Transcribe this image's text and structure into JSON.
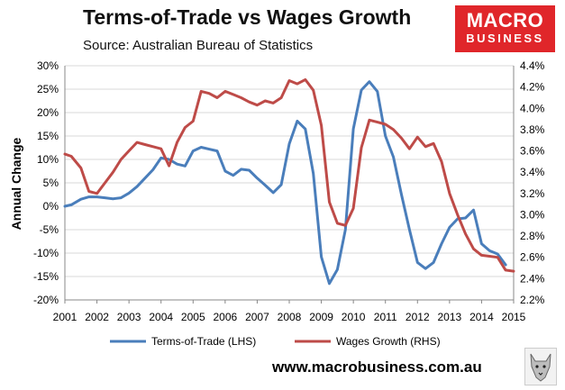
{
  "header": {
    "title": "Terms-of-Trade vs Wages Growth",
    "subtitle": "Source: Australian Bureau of Statistics"
  },
  "logo": {
    "line1": "MACRO",
    "line2": "BUSINESS"
  },
  "footer": {
    "website": "www.macrobusiness.com.au",
    "wolf_icon": "wolf-icon"
  },
  "colors": {
    "tot": "#4a7ebb",
    "wages": "#be4b48",
    "grid": "#d9d9d9",
    "logo_bg": "#e0262a"
  },
  "chart_data": {
    "type": "line",
    "title": "Terms-of-Trade vs Wages Growth",
    "ylabel": "Annual Change",
    "xlabel": "",
    "categories": [
      "2001",
      "2002",
      "2003",
      "2004",
      "2005",
      "2006",
      "2007",
      "2008",
      "2009",
      "2010",
      "2011",
      "2012",
      "2013",
      "2014",
      "2015"
    ],
    "ylim_left": [
      -20,
      30
    ],
    "ylim_right": [
      2.2,
      4.4
    ],
    "yticks_left": [
      "30%",
      "25%",
      "20%",
      "15%",
      "10%",
      "5%",
      "0%",
      "-5%",
      "-10%",
      "-15%",
      "-20%"
    ],
    "yticks_right": [
      "4.4%",
      "4.2%",
      "4.0%",
      "3.8%",
      "3.6%",
      "3.4%",
      "3.2%",
      "3.0%",
      "2.8%",
      "2.6%",
      "2.4%",
      "2.2%"
    ],
    "grid": true,
    "legend": "bottom",
    "series": [
      {
        "name": "Terms-of-Trade (LHS)",
        "axis": "left",
        "x": [
          2001.0,
          2001.2,
          2001.5,
          2001.75,
          2002.0,
          2002.25,
          2002.5,
          2002.75,
          2003.0,
          2003.25,
          2003.5,
          2003.75,
          2004.0,
          2004.25,
          2004.5,
          2004.75,
          2005.0,
          2005.25,
          2005.5,
          2005.75,
          2006.0,
          2006.25,
          2006.5,
          2006.75,
          2007.0,
          2007.25,
          2007.5,
          2007.75,
          2008.0,
          2008.25,
          2008.5,
          2008.75,
          2009.0,
          2009.25,
          2009.5,
          2009.75,
          2010.0,
          2010.25,
          2010.5,
          2010.75,
          2011.0,
          2011.25,
          2011.5,
          2011.75,
          2012.0,
          2012.25,
          2012.5,
          2012.75,
          2013.0,
          2013.25,
          2013.5,
          2013.75,
          2014.0,
          2014.25,
          2014.5,
          2014.75
        ],
        "values": [
          0.0,
          0.3,
          1.5,
          2.0,
          2.0,
          1.8,
          1.6,
          1.8,
          2.8,
          4.2,
          6.0,
          7.8,
          10.3,
          10.0,
          9.0,
          8.6,
          11.8,
          12.6,
          12.2,
          11.8,
          7.5,
          6.6,
          7.9,
          7.7,
          6.0,
          4.5,
          2.9,
          4.6,
          13.3,
          18.2,
          16.5,
          7.0,
          -10.8,
          -16.5,
          -13.5,
          -5.0,
          16.5,
          24.8,
          26.6,
          24.5,
          15.0,
          10.5,
          2.5,
          -5.0,
          -12.0,
          -13.3,
          -12.0,
          -8.0,
          -4.5,
          -2.7,
          -2.5,
          -0.8,
          -8.0,
          -9.5,
          -10.2,
          -12.5
        ]
      },
      {
        "name": "Wages Growth (RHS)",
        "axis": "right",
        "x": [
          2001.0,
          2001.2,
          2001.5,
          2001.75,
          2002.0,
          2002.25,
          2002.5,
          2002.75,
          2003.0,
          2003.25,
          2003.5,
          2003.75,
          2004.0,
          2004.25,
          2004.5,
          2004.75,
          2005.0,
          2005.25,
          2005.5,
          2005.75,
          2006.0,
          2006.25,
          2006.5,
          2006.75,
          2007.0,
          2007.25,
          2007.5,
          2007.75,
          2008.0,
          2008.25,
          2008.5,
          2008.75,
          2009.0,
          2009.25,
          2009.5,
          2009.75,
          2010.0,
          2010.25,
          2010.5,
          2010.75,
          2011.0,
          2011.25,
          2011.5,
          2011.75,
          2012.0,
          2012.25,
          2012.5,
          2012.75,
          2013.0,
          2013.25,
          2013.5,
          2013.75,
          2014.0,
          2014.25,
          2014.5,
          2014.75,
          2015.0
        ],
        "values": [
          3.57,
          3.55,
          3.44,
          3.22,
          3.2,
          3.3,
          3.4,
          3.52,
          3.6,
          3.68,
          3.66,
          3.64,
          3.62,
          3.46,
          3.68,
          3.82,
          3.88,
          4.16,
          4.14,
          4.1,
          4.16,
          4.13,
          4.1,
          4.06,
          4.03,
          4.07,
          4.05,
          4.1,
          4.26,
          4.23,
          4.27,
          4.17,
          3.84,
          3.12,
          2.92,
          2.9,
          3.06,
          3.63,
          3.89,
          3.87,
          3.85,
          3.8,
          3.72,
          3.62,
          3.73,
          3.64,
          3.67,
          3.5,
          3.2,
          3.0,
          2.82,
          2.68,
          2.62,
          2.61,
          2.6,
          2.48,
          2.47
        ]
      }
    ]
  }
}
